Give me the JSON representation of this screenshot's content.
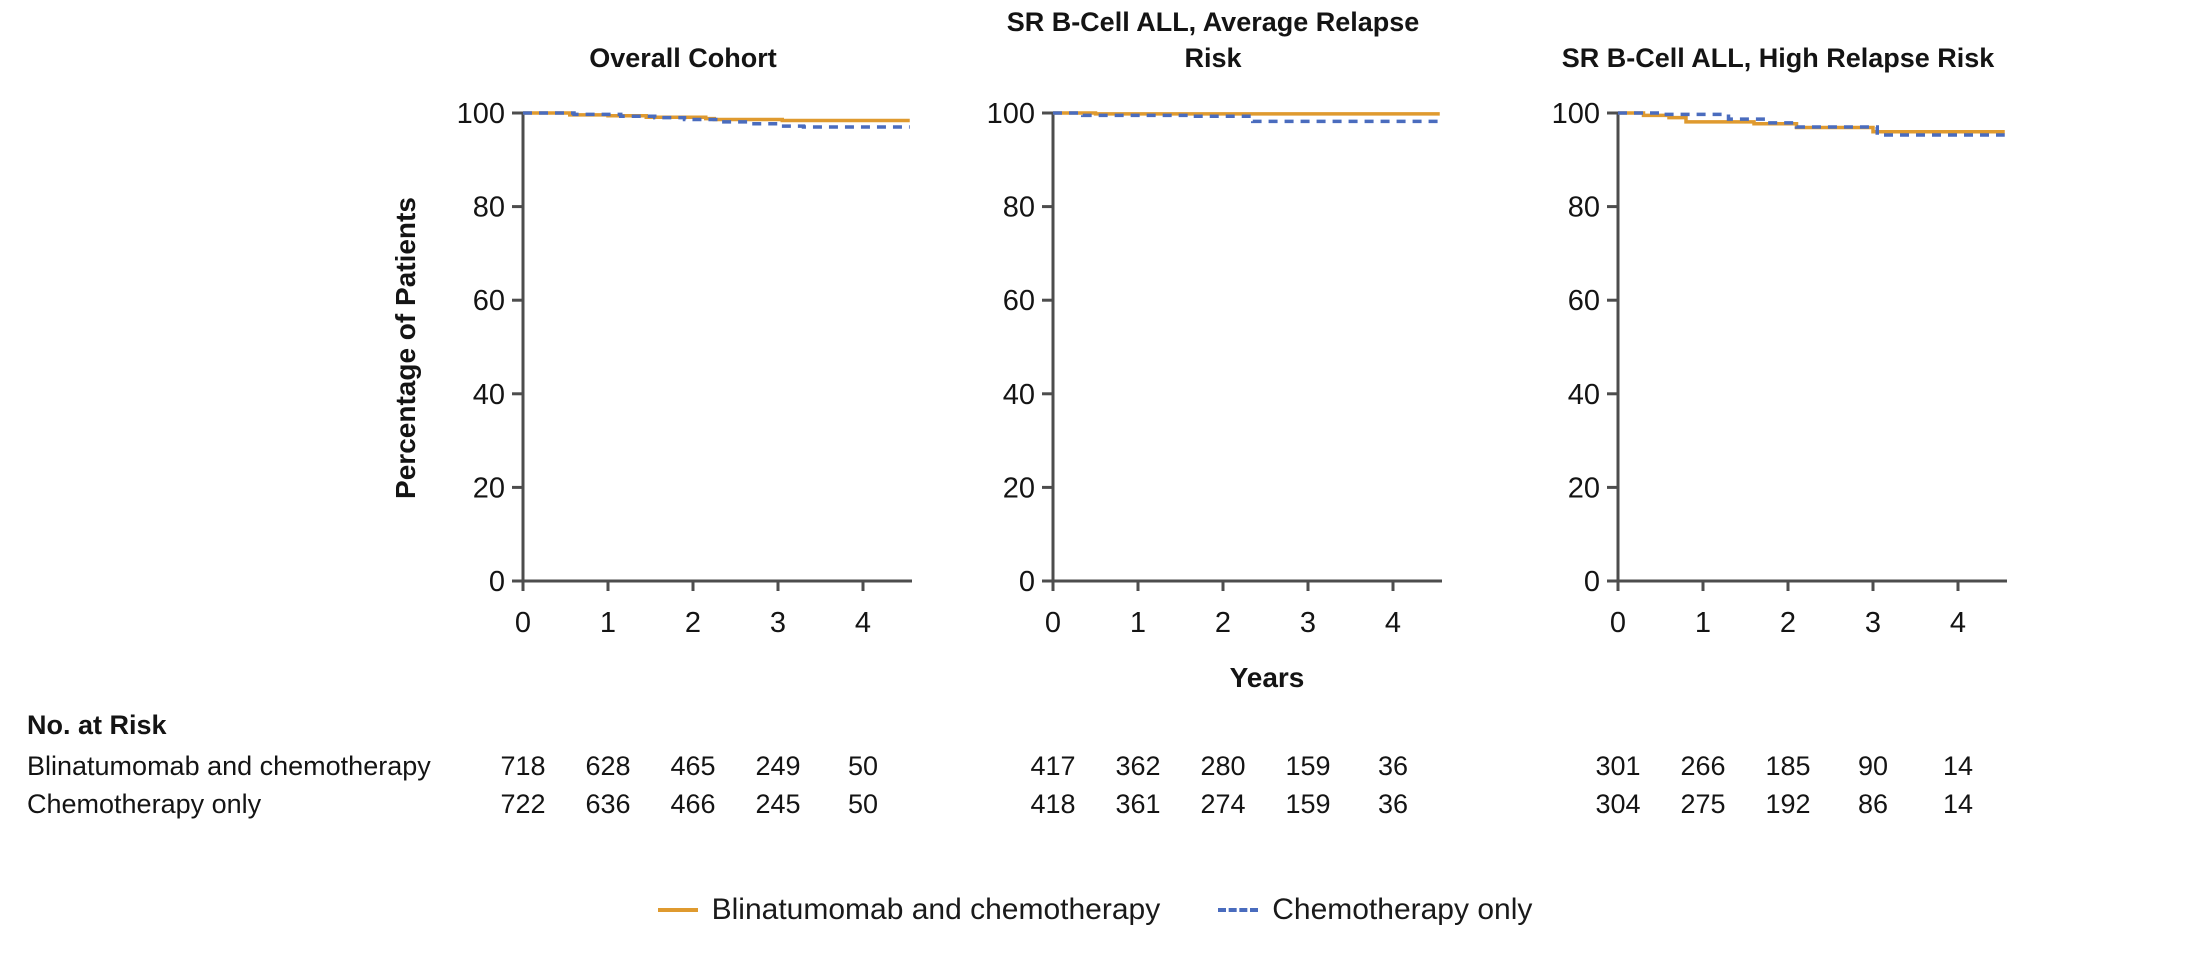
{
  "figure": {
    "y_axis_label": "Percentage of Patients",
    "x_axis_label": "Years",
    "no_at_risk_title": "No. at Risk",
    "risk_row_labels": [
      "Blinatumomab and chemotherapy",
      "Chemotherapy only"
    ],
    "legend": [
      {
        "label": "Blinatumomab and chemotherapy",
        "color": "#DF9A2F",
        "style": "solid"
      },
      {
        "label": "Chemotherapy only",
        "color": "#4A6CBE",
        "style": "dashed"
      }
    ],
    "colors": {
      "blinatumomab": "#DF9A2F",
      "chemotherapy": "#4A6CBE",
      "axis": "#4d4d4d"
    }
  },
  "chart_data": [
    {
      "type": "line",
      "title": "Overall Cohort",
      "xlabel": "Years",
      "ylabel": "Percentage of Patients",
      "xlim": [
        0,
        4.58
      ],
      "ylim": [
        0,
        100
      ],
      "xticks": [
        0,
        1,
        2,
        3,
        4
      ],
      "yticks": [
        0,
        20,
        40,
        60,
        80,
        100
      ],
      "grid": false,
      "series": [
        {
          "id": "blinatumomab",
          "name": "Blinatumomab and chemotherapy",
          "color": "#DF9A2F",
          "dash": false,
          "points": [
            [
              0,
              100
            ],
            [
              0.55,
              99.6
            ],
            [
              1.0,
              99.4
            ],
            [
              1.45,
              99.1
            ],
            [
              2.15,
              98.8
            ],
            [
              2.25,
              98.6
            ],
            [
              3.05,
              98.4
            ],
            [
              4.55,
              98.4
            ]
          ]
        },
        {
          "id": "chemotherapy",
          "name": "Chemotherapy only",
          "color": "#4A6CBE",
          "dash": true,
          "points": [
            [
              0,
              100
            ],
            [
              0.6,
              99.7
            ],
            [
              1.15,
              99.3
            ],
            [
              1.55,
              99.0
            ],
            [
              1.9,
              98.6
            ],
            [
              2.3,
              98.1
            ],
            [
              2.65,
              97.7
            ],
            [
              3.0,
              97.2
            ],
            [
              3.3,
              97.0
            ],
            [
              4.55,
              97.0
            ]
          ]
        }
      ],
      "no_at_risk": {
        "times": [
          0,
          1,
          2,
          3,
          4
        ],
        "rows": [
          {
            "label": "Blinatumomab and chemotherapy",
            "values": [
              718,
              628,
              465,
              249,
              50
            ]
          },
          {
            "label": "Chemotherapy only",
            "values": [
              722,
              636,
              466,
              245,
              50
            ]
          }
        ]
      }
    },
    {
      "type": "line",
      "title": "SR B-Cell ALL, Average Relapse Risk",
      "xlabel": "Years",
      "ylabel": "Percentage of Patients",
      "xlim": [
        0,
        4.58
      ],
      "ylim": [
        0,
        100
      ],
      "xticks": [
        0,
        1,
        2,
        3,
        4
      ],
      "yticks": [
        0,
        20,
        40,
        60,
        80,
        100
      ],
      "grid": false,
      "series": [
        {
          "id": "blinatumomab",
          "name": "Blinatumomab and chemotherapy",
          "color": "#DF9A2F",
          "dash": false,
          "points": [
            [
              0,
              100
            ],
            [
              0.5,
              99.8
            ],
            [
              4.55,
              99.8
            ]
          ]
        },
        {
          "id": "chemotherapy",
          "name": "Chemotherapy only",
          "color": "#4A6CBE",
          "dash": true,
          "points": [
            [
              0,
              100
            ],
            [
              0.35,
              99.5
            ],
            [
              1.6,
              99.3
            ],
            [
              2.35,
              98.2
            ],
            [
              4.55,
              98.2
            ]
          ]
        }
      ],
      "no_at_risk": {
        "times": [
          0,
          1,
          2,
          3,
          4
        ],
        "rows": [
          {
            "label": "Blinatumomab and chemotherapy",
            "values": [
              417,
              362,
              280,
              159,
              36
            ]
          },
          {
            "label": "Chemotherapy only",
            "values": [
              418,
              361,
              274,
              159,
              36
            ]
          }
        ]
      }
    },
    {
      "type": "line",
      "title": "SR B-Cell ALL, High Relapse Risk",
      "xlabel": "Years",
      "ylabel": "Percentage of Patients",
      "xlim": [
        0,
        4.58
      ],
      "ylim": [
        0,
        100
      ],
      "xticks": [
        0,
        1,
        2,
        3,
        4
      ],
      "yticks": [
        0,
        20,
        40,
        60,
        80,
        100
      ],
      "grid": false,
      "series": [
        {
          "id": "blinatumomab",
          "name": "Blinatumomab and chemotherapy",
          "color": "#DF9A2F",
          "dash": false,
          "points": [
            [
              0,
              100
            ],
            [
              0.3,
              99.5
            ],
            [
              0.6,
              99.0
            ],
            [
              0.8,
              98.1
            ],
            [
              1.6,
              97.7
            ],
            [
              2.1,
              96.9
            ],
            [
              3.0,
              96.0
            ],
            [
              4.55,
              96.0
            ]
          ]
        },
        {
          "id": "chemotherapy",
          "name": "Chemotherapy only",
          "color": "#4A6CBE",
          "dash": true,
          "points": [
            [
              0,
              100
            ],
            [
              0.5,
              99.7
            ],
            [
              1.3,
              98.7
            ],
            [
              1.75,
              97.9
            ],
            [
              2.1,
              97.0
            ],
            [
              3.05,
              95.3
            ],
            [
              4.55,
              95.3
            ]
          ]
        }
      ],
      "no_at_risk": {
        "times": [
          0,
          1,
          2,
          3,
          4
        ],
        "rows": [
          {
            "label": "Blinatumomab and chemotherapy",
            "values": [
              301,
              266,
              185,
              90,
              14
            ]
          },
          {
            "label": "Chemotherapy only",
            "values": [
              304,
              275,
              192,
              86,
              14
            ]
          }
        ]
      }
    }
  ]
}
